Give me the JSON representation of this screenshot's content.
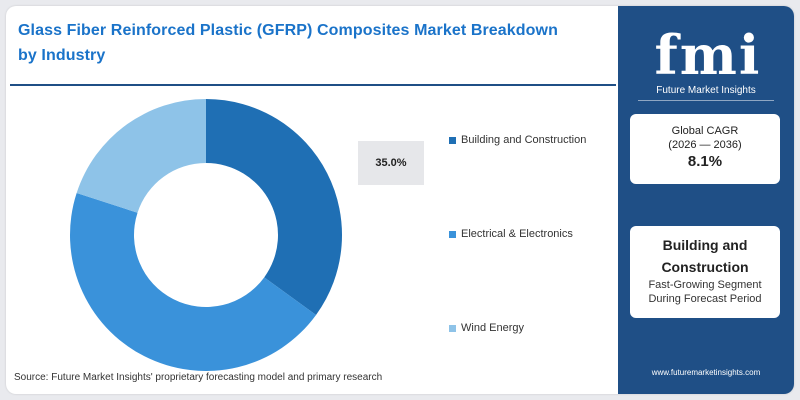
{
  "header": {
    "title_line1": "Glass Fiber Reinforced Plastic (GFRP) Composites Market Breakdown",
    "title_line2": "by  Industry"
  },
  "chart_data": {
    "type": "pie",
    "donut": true,
    "categories": [
      "Building and Construction",
      "Electrical & Electronics",
      "Wind Energy"
    ],
    "values": [
      35.0,
      45.0,
      20.0
    ],
    "colors": [
      "#1f6fb4",
      "#3a92da",
      "#8ec3e8"
    ],
    "callout": {
      "label": "35.0%",
      "category": "Building and Construction"
    },
    "legend_position": "right"
  },
  "source": "Source: Future Market Insights' proprietary forecasting model and primary research",
  "sidebar": {
    "logo_text": "fmi",
    "logo_subtitle": "Future Market Insights",
    "cagr": {
      "label": "Global CAGR",
      "period": "(2026 — 2036)",
      "value": "8.1%"
    },
    "segment": {
      "title_line1": "Building and",
      "title_line2": "Construction",
      "desc_line1": "Fast-Growing Segment",
      "desc_line2": "During Forecast Period"
    },
    "website": "www.futuremarketinsights.com"
  }
}
